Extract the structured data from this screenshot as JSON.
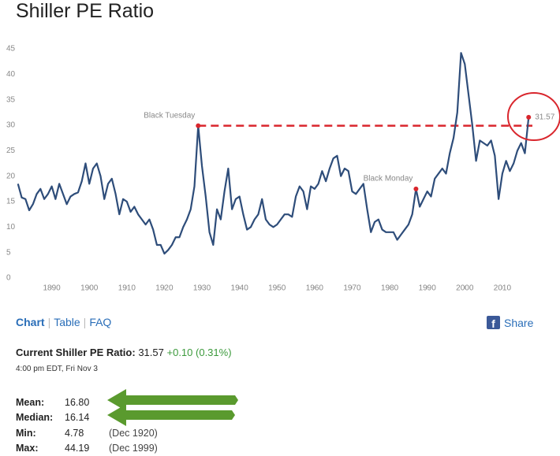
{
  "header": {
    "title": "Shiller PE Ratio"
  },
  "chart_data": {
    "type": "line",
    "x": [
      1881,
      1882,
      1883,
      1884,
      1885,
      1886,
      1887,
      1888,
      1889,
      1890,
      1891,
      1892,
      1893,
      1894,
      1895,
      1896,
      1897,
      1898,
      1899,
      1900,
      1901,
      1902,
      1903,
      1904,
      1905,
      1906,
      1907,
      1908,
      1909,
      1910,
      1911,
      1912,
      1913,
      1914,
      1915,
      1916,
      1917,
      1918,
      1919,
      1920,
      1921,
      1922,
      1923,
      1924,
      1925,
      1926,
      1927,
      1928,
      1929,
      1930,
      1931,
      1932,
      1933,
      1934,
      1935,
      1936,
      1937,
      1938,
      1939,
      1940,
      1941,
      1942,
      1943,
      1944,
      1945,
      1946,
      1947,
      1948,
      1949,
      1950,
      1951,
      1952,
      1953,
      1954,
      1955,
      1956,
      1957,
      1958,
      1959,
      1960,
      1961,
      1962,
      1963,
      1964,
      1965,
      1966,
      1967,
      1968,
      1969,
      1970,
      1971,
      1972,
      1973,
      1974,
      1975,
      1976,
      1977,
      1978,
      1979,
      1980,
      1981,
      1982,
      1983,
      1984,
      1985,
      1986,
      1987,
      1988,
      1989,
      1990,
      1991,
      1992,
      1993,
      1994,
      1995,
      1996,
      1997,
      1998,
      1999,
      2000,
      2001,
      2002,
      2003,
      2004,
      2005,
      2006,
      2007,
      2008,
      2009,
      2010,
      2011,
      2012,
      2013,
      2014,
      2015,
      2016,
      2017
    ],
    "values": [
      18.5,
      15.8,
      15.5,
      13.3,
      14.5,
      16.5,
      17.5,
      15.5,
      16.5,
      18.0,
      15.5,
      18.5,
      16.5,
      14.5,
      16.0,
      16.5,
      16.8,
      19.0,
      22.5,
      18.5,
      21.5,
      22.5,
      20.0,
      15.5,
      18.5,
      19.5,
      16.5,
      12.5,
      15.5,
      15.0,
      13.0,
      14.0,
      12.5,
      11.5,
      10.5,
      11.5,
      9.5,
      6.5,
      6.5,
      4.78,
      5.5,
      6.5,
      8.0,
      8.0,
      10.0,
      11.5,
      13.5,
      18.0,
      29.9,
      22.0,
      16.0,
      9.0,
      6.5,
      13.5,
      11.5,
      17.0,
      21.5,
      13.5,
      15.5,
      16.0,
      12.5,
      9.5,
      10.0,
      11.5,
      12.5,
      15.5,
      11.5,
      10.5,
      10.0,
      10.5,
      11.5,
      12.5,
      12.5,
      12.0,
      16.0,
      18.0,
      17.0,
      13.5,
      18.0,
      17.5,
      18.5,
      21.0,
      19.0,
      21.5,
      23.5,
      24.0,
      20.0,
      21.5,
      21.0,
      17.0,
      16.5,
      17.5,
      18.5,
      13.5,
      9.0,
      11.0,
      11.5,
      9.5,
      9.0,
      9.0,
      9.0,
      7.5,
      8.5,
      9.5,
      10.5,
      12.5,
      17.5,
      14.0,
      15.5,
      17.0,
      16.0,
      19.5,
      20.5,
      21.5,
      20.5,
      24.5,
      27.5,
      32.5,
      44.19,
      42.0,
      36.0,
      30.0,
      23.0,
      27.0,
      26.5,
      26.0,
      27.0,
      24.0,
      15.5,
      20.5,
      23.0,
      21.0,
      22.5,
      25.0,
      26.5,
      24.5,
      31.57
    ],
    "color": "#2e4d7a",
    "xlim": [
      1880,
      2018
    ],
    "ylim": [
      0,
      45
    ],
    "xticks": [
      1890,
      1900,
      1910,
      1920,
      1930,
      1940,
      1950,
      1960,
      1970,
      1980,
      1990,
      2000,
      2010
    ],
    "yticks": [
      0,
      5,
      10,
      15,
      20,
      25,
      30,
      35,
      40,
      45
    ],
    "grid": false,
    "hline": {
      "value": 29.9,
      "color": "#d9262d"
    },
    "annotations": [
      {
        "text": "Black Tuesday",
        "x": 1929,
        "y": 29.9
      },
      {
        "text": "Black Monday",
        "x": 1987,
        "y": 17.5
      },
      {
        "text": "31.57",
        "x": 2017,
        "y": 31.57
      }
    ]
  },
  "nav": {
    "items": [
      "Chart",
      "Table",
      "FAQ"
    ],
    "share": "Share"
  },
  "current": {
    "label": "Current Shiller PE Ratio:",
    "value": "31.57",
    "change": "+0.10 (0.31%)",
    "time": "4:00 pm EDT, Fri Nov 3"
  },
  "stats": [
    {
      "label": "Mean:",
      "value": "16.80",
      "date": ""
    },
    {
      "label": "Median:",
      "value": "16.14",
      "date": ""
    },
    {
      "label": "Min:",
      "value": "4.78",
      "date": "(Dec 1920)"
    },
    {
      "label": "Max:",
      "value": "44.19",
      "date": "(Dec 1999)"
    }
  ]
}
